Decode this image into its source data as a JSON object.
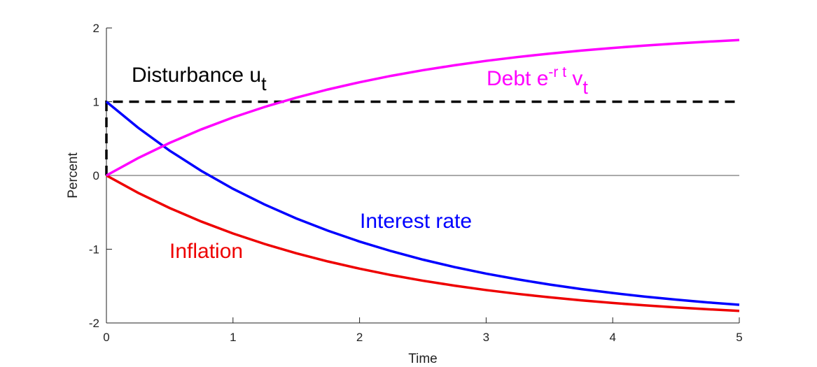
{
  "chart_data": {
    "type": "line",
    "x_label": "Time",
    "y_label": "Percent",
    "xlim": [
      0,
      5
    ],
    "ylim": [
      -2,
      2
    ],
    "xticks": [
      0,
      1,
      2,
      3,
      4,
      5
    ],
    "yticks": [
      -2,
      -1,
      0,
      1,
      2
    ],
    "zero_line": true,
    "series": [
      {
        "label_parts": [
          {
            "text": "Debt e"
          },
          {
            "text": "-r t",
            "shift": "super"
          },
          {
            "text": " v"
          },
          {
            "text": "t",
            "shift": "sub"
          }
        ],
        "color": "#ff00ff",
        "dash": false,
        "x": [
          0,
          0.25,
          0.5,
          0.75,
          1,
          1.25,
          1.5,
          1.75,
          2,
          2.25,
          2.5,
          2.75,
          3,
          3.25,
          3.5,
          3.75,
          4,
          4.25,
          4.5,
          4.75,
          5
        ],
        "values": [
          0,
          0.235,
          0.442,
          0.625,
          0.787,
          0.929,
          1.055,
          1.166,
          1.264,
          1.351,
          1.427,
          1.494,
          1.554,
          1.606,
          1.652,
          1.693,
          1.729,
          1.761,
          1.789,
          1.814,
          1.836
        ]
      },
      {
        "label_parts": [
          {
            "text": "Interest rate"
          }
        ],
        "color": "#0000ff",
        "dash": false,
        "x": [
          0,
          0.25,
          0.5,
          0.75,
          1,
          1.25,
          1.5,
          1.75,
          2,
          2.25,
          2.5,
          2.75,
          3,
          3.25,
          3.5,
          3.75,
          4,
          4.25,
          4.5,
          4.75,
          5
        ],
        "values": [
          1,
          0.648,
          0.336,
          0.062,
          -0.181,
          -0.394,
          -0.583,
          -0.749,
          -0.896,
          -1.026,
          -1.141,
          -1.242,
          -1.331,
          -1.409,
          -1.479,
          -1.54,
          -1.594,
          -1.642,
          -1.684,
          -1.721,
          -1.754
        ]
      },
      {
        "label_parts": [
          {
            "text": "Inflation"
          }
        ],
        "color": "#ee0000",
        "dash": false,
        "x": [
          0,
          0.25,
          0.5,
          0.75,
          1,
          1.25,
          1.5,
          1.75,
          2,
          2.25,
          2.5,
          2.75,
          3,
          3.25,
          3.5,
          3.75,
          4,
          4.25,
          4.5,
          4.75,
          5
        ],
        "values": [
          0,
          -0.235,
          -0.442,
          -0.625,
          -0.787,
          -0.929,
          -1.055,
          -1.166,
          -1.264,
          -1.351,
          -1.427,
          -1.494,
          -1.554,
          -1.606,
          -1.652,
          -1.693,
          -1.729,
          -1.761,
          -1.789,
          -1.814,
          -1.836
        ]
      },
      {
        "label_parts": [
          {
            "text": "Disturbance u"
          },
          {
            "text": "t",
            "shift": "sub"
          }
        ],
        "color": "#000000",
        "dash": true,
        "x": [
          0,
          0,
          5
        ],
        "values": [
          0,
          1,
          1
        ]
      }
    ]
  }
}
